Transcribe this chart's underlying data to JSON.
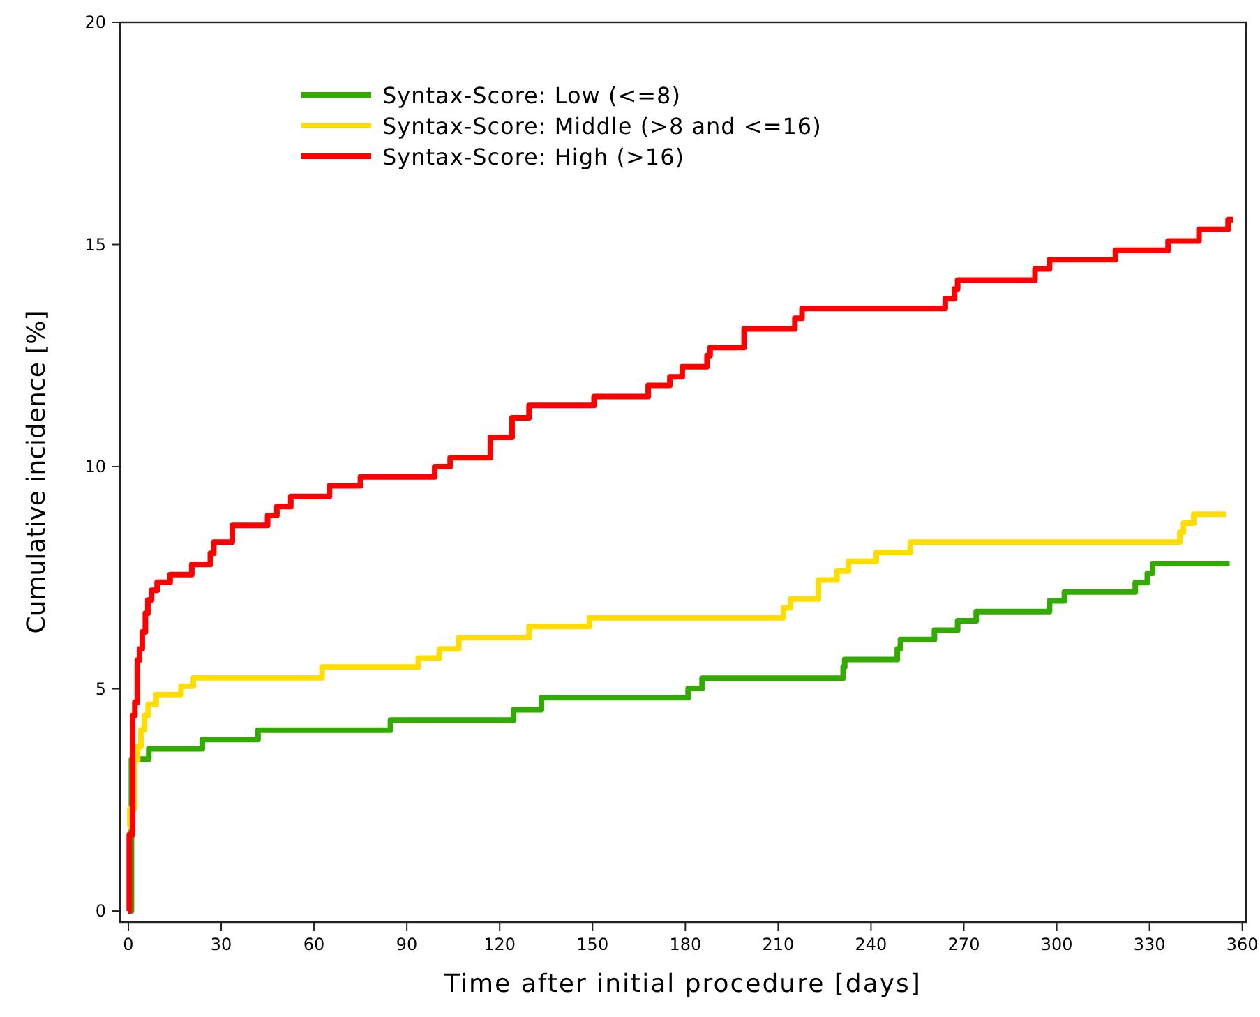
{
  "chart_data": {
    "type": "step",
    "xlabel": "Time after initial procedure [days]",
    "ylabel": "Cumulative incidence [%]",
    "xlim": [
      -2.7,
      361.2
    ],
    "ylim": [
      -0.25,
      20
    ],
    "xticks": [
      0,
      30,
      60,
      90,
      120,
      150,
      180,
      210,
      240,
      270,
      300,
      330,
      360
    ],
    "yticks": [
      0,
      5,
      10,
      15,
      20
    ],
    "grid": false,
    "legend": "top left",
    "line_style": "solid",
    "series": [
      {
        "name": "Syntax-Score: Low (<=8)",
        "color": "#33aa00",
        "x": [
          0,
          1,
          6.6,
          23.9,
          41.9,
          84.7,
          124.5,
          133.5,
          180.9,
          185.4,
          231,
          231.5,
          248.5,
          249.5,
          260.5,
          268,
          274,
          297.7,
          302.5,
          325.4,
          329.3,
          331,
          355.9
        ],
        "values": [
          0,
          3.42,
          3.65,
          3.86,
          4.07,
          4.3,
          4.53,
          4.8,
          5.01,
          5.24,
          5.49,
          5.66,
          5.9,
          6.11,
          6.32,
          6.53,
          6.74,
          6.98,
          7.18,
          7.39,
          7.6,
          7.82,
          7.82
        ]
      },
      {
        "name": "Syntax-Score: Middle (>8 and <=16)",
        "color": "#ffdd00",
        "x": [
          0,
          0.5,
          1.9,
          3,
          4.1,
          5.2,
          6.4,
          9,
          17,
          21,
          62.6,
          93.7,
          100.5,
          106.8,
          129.5,
          149,
          211.7,
          214,
          223,
          229,
          232.7,
          241.7,
          252.7,
          339.8,
          341,
          344.3,
          354.7
        ],
        "values": [
          1.9,
          2.3,
          3.4,
          3.7,
          4.08,
          4.4,
          4.65,
          4.87,
          5.06,
          5.25,
          5.49,
          5.69,
          5.9,
          6.15,
          6.4,
          6.6,
          6.82,
          7.02,
          7.45,
          7.65,
          7.87,
          8.07,
          8.3,
          8.52,
          8.73,
          8.93,
          8.93
        ]
      },
      {
        "name": "Syntax-Score: High (>16)",
        "color": "#ff0000",
        "x": [
          0,
          0.3,
          1.35,
          2.1,
          2.9,
          3.6,
          4.5,
          5.5,
          6.3,
          7.5,
          9.3,
          13.5,
          20.5,
          26.5,
          27.6,
          33.6,
          45,
          48,
          52.5,
          65,
          75,
          99,
          104,
          117,
          124,
          129.5,
          150.5,
          168,
          175,
          179,
          187,
          188,
          199,
          215.4,
          217.7,
          264,
          267,
          268,
          293,
          297.7,
          319,
          336,
          346,
          355.4,
          357
        ],
        "values": [
          0,
          1.72,
          4.4,
          4.7,
          5.65,
          5.9,
          6.28,
          6.7,
          7,
          7.22,
          7.4,
          7.57,
          7.8,
          8.05,
          8.3,
          8.68,
          8.9,
          9.1,
          9.33,
          9.57,
          9.77,
          10,
          10.2,
          10.66,
          11.1,
          11.38,
          11.58,
          11.83,
          12.02,
          12.25,
          12.5,
          12.68,
          13.1,
          13.34,
          13.56,
          13.78,
          14,
          14.2,
          14.45,
          14.66,
          14.87,
          15.08,
          15.34,
          15.56,
          15.56
        ]
      }
    ]
  }
}
